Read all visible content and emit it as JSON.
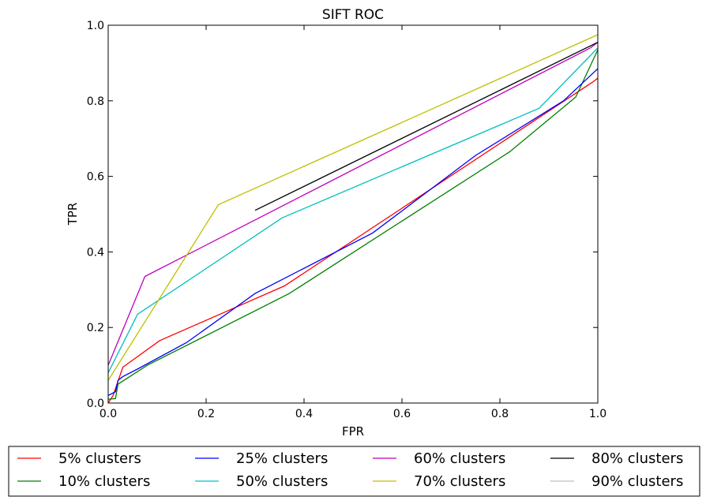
{
  "colors": {
    "red": "#ff0000",
    "green": "#008000",
    "blue": "#0000ff",
    "cyan": "#00bfbf",
    "magenta": "#bf00bf",
    "olive": "#bfbf00",
    "black": "#000000",
    "gray": "#bfbfbf"
  },
  "chart_data": {
    "type": "line",
    "title": "SIFT ROC",
    "xlabel": "FPR",
    "ylabel": "TPR",
    "xlim": [
      0,
      1
    ],
    "ylim": [
      0,
      1
    ],
    "xticks": [
      "0.0",
      "0.2",
      "0.4",
      "0.6",
      "0.8",
      "1.0"
    ],
    "yticks": [
      "0.0",
      "0.2",
      "0.4",
      "0.6",
      "0.8",
      "1.0"
    ],
    "grid": false,
    "legend_position": "below",
    "series": [
      {
        "name": "5% clusters",
        "color": "#ff0000",
        "x": [
          0.0,
          0.01,
          0.03,
          0.105,
          0.36,
          0.99,
          1.0
        ],
        "y": [
          0.0,
          0.02,
          0.095,
          0.165,
          0.31,
          0.85,
          0.86
        ]
      },
      {
        "name": "10% clusters",
        "color": "#008000",
        "x": [
          0.0,
          0.015,
          0.02,
          0.08,
          0.37,
          0.82,
          0.955,
          1.0
        ],
        "y": [
          0.01,
          0.012,
          0.05,
          0.1,
          0.29,
          0.665,
          0.81,
          0.935
        ]
      },
      {
        "name": "25% clusters",
        "color": "#0000ff",
        "x": [
          0.0,
          0.015,
          0.02,
          0.03,
          0.06,
          0.16,
          0.3,
          0.54,
          0.75,
          0.93,
          1.0
        ],
        "y": [
          0.02,
          0.03,
          0.06,
          0.07,
          0.09,
          0.16,
          0.29,
          0.45,
          0.655,
          0.8,
          0.885
        ]
      },
      {
        "name": "50% clusters",
        "color": "#00bfbf",
        "x": [
          0.0,
          0.06,
          0.355,
          0.88,
          1.0
        ],
        "y": [
          0.08,
          0.235,
          0.49,
          0.78,
          0.94
        ]
      },
      {
        "name": "60% clusters",
        "color": "#bf00bf",
        "x": [
          0.0,
          0.075,
          0.985,
          1.0
        ],
        "y": [
          0.1,
          0.335,
          0.94,
          0.955
        ]
      },
      {
        "name": "70% clusters",
        "color": "#bfbf00",
        "x": [
          0.0,
          0.225,
          1.0
        ],
        "y": [
          0.06,
          0.525,
          0.975
        ]
      },
      {
        "name": "80% clusters",
        "color": "#000000",
        "x": [
          0.3,
          1.0
        ],
        "y": [
          0.51,
          0.955
        ]
      },
      {
        "name": "90% clusters",
        "color": "#bfbfbf",
        "x": [],
        "y": []
      }
    ]
  }
}
